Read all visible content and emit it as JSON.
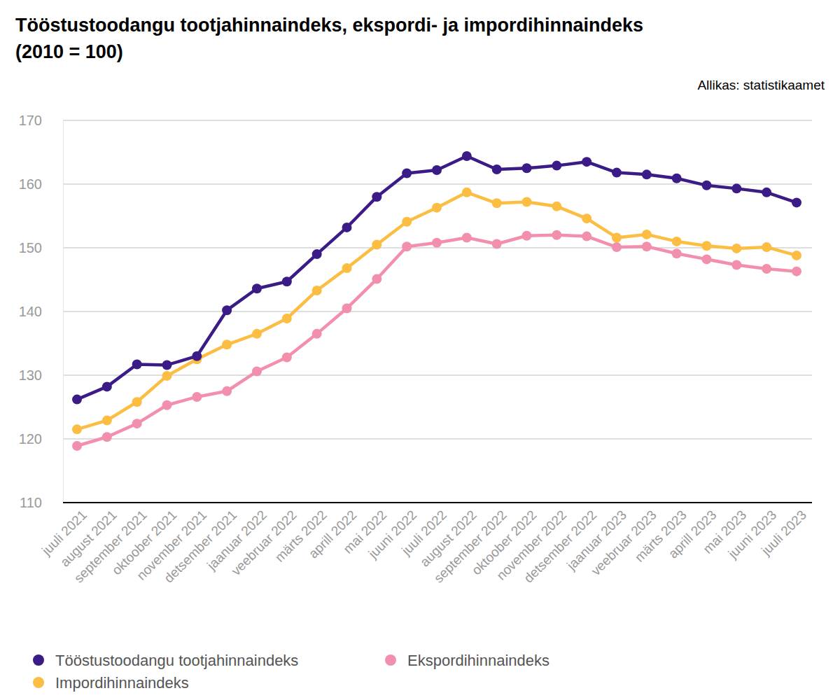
{
  "chart_data": {
    "type": "line",
    "title": [
      "Tööstustoodangu tootjahinnaindeks, ekspordi- ja impordihinnaindeks",
      "(2010 = 100)"
    ],
    "source": "Allikas: statistikaamet",
    "categories": [
      "juuli 2021",
      "august 2021",
      "september 2021",
      "oktoober 2021",
      "november 2021",
      "detsember 2021",
      "jaanuar 2022",
      "veebruar 2022",
      "märts 2022",
      "aprill 2022",
      "mai 2022",
      "juuni 2022",
      "juuli 2022",
      "august 2022",
      "september 2022",
      "oktoober 2022",
      "november 2022",
      "detsember 2022",
      "jaanuar 2023",
      "veebruar 2023",
      "märts 2023",
      "aprill 2023",
      "mai 2023",
      "juuni 2023",
      "juuli 2023"
    ],
    "series": [
      {
        "name": "Tööstustoodangu tootjahinnaindeks",
        "color": "#3b1c87",
        "marker": "circle",
        "values": [
          126.2,
          128.2,
          131.7,
          131.6,
          133.0,
          140.2,
          143.6,
          144.7,
          149.0,
          153.2,
          158.0,
          161.7,
          162.2,
          164.4,
          162.3,
          162.5,
          162.9,
          163.5,
          161.8,
          161.5,
          160.9,
          159.8,
          159.3,
          158.7,
          157.1
        ]
      },
      {
        "name": "Impordihinnaindeks",
        "color": "#fbbd42",
        "marker": "circle",
        "values": [
          121.5,
          122.9,
          125.8,
          129.9,
          132.5,
          134.8,
          136.5,
          138.9,
          143.3,
          146.8,
          150.5,
          154.1,
          156.3,
          158.7,
          157.0,
          157.2,
          156.5,
          154.6,
          151.6,
          152.1,
          151.0,
          150.3,
          149.9,
          150.1,
          148.8
        ]
      },
      {
        "name": "Ekspordihinnaindeks",
        "color": "#f28fad",
        "marker": "circle",
        "values": [
          118.9,
          120.3,
          122.4,
          125.3,
          126.6,
          127.5,
          130.6,
          132.8,
          136.5,
          140.5,
          145.1,
          150.2,
          150.8,
          151.6,
          150.6,
          151.9,
          152.0,
          151.8,
          150.1,
          150.2,
          149.1,
          148.2,
          147.3,
          146.7,
          146.3
        ]
      }
    ],
    "ylim": [
      110,
      170
    ],
    "yticks": [
      110,
      120,
      130,
      140,
      150,
      160,
      170
    ],
    "grid": true,
    "legend": "bottom"
  }
}
